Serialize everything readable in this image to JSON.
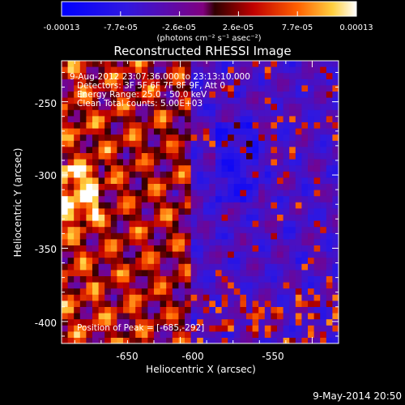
{
  "chart_data": {
    "type": "heatmap",
    "title": "Reconstructed RHESSI Image",
    "xlabel": "Heliocentric X (arcsec)",
    "ylabel": "Heliocentric Y (arcsec)",
    "xlim": [
      -695,
      -590
    ],
    "ylim": [
      -415,
      -222
    ],
    "xticks": [
      -650,
      -600,
      -550
    ],
    "yticks": [
      -250,
      -300,
      -350,
      -400
    ],
    "colorbar": {
      "ticks": [
        "-0.00013",
        "-7.7e-05",
        "-2.6e-05",
        "2.6e-05",
        "7.7e-05",
        "0.00013"
      ],
      "units": "(photons cm⁻² s⁻¹ asec⁻²)",
      "range": [
        -0.00013,
        0.00013
      ]
    },
    "annotations": {
      "time_range": "9-Aug-2012 23:07:36.000 to 23:13:10.000",
      "detectors": "Detectors: 3F 5F 6F 7F 8F 9F, Att 0",
      "energy": "Energy Range: 25.0 - 50.0 keV",
      "clean": "Clean    Total counts: 5.00E+03",
      "peak": "Position of Peak = [-685,-292]"
    },
    "peak": {
      "x": -685,
      "y": -292
    },
    "timestamp": "9-May-2014 20:50"
  }
}
